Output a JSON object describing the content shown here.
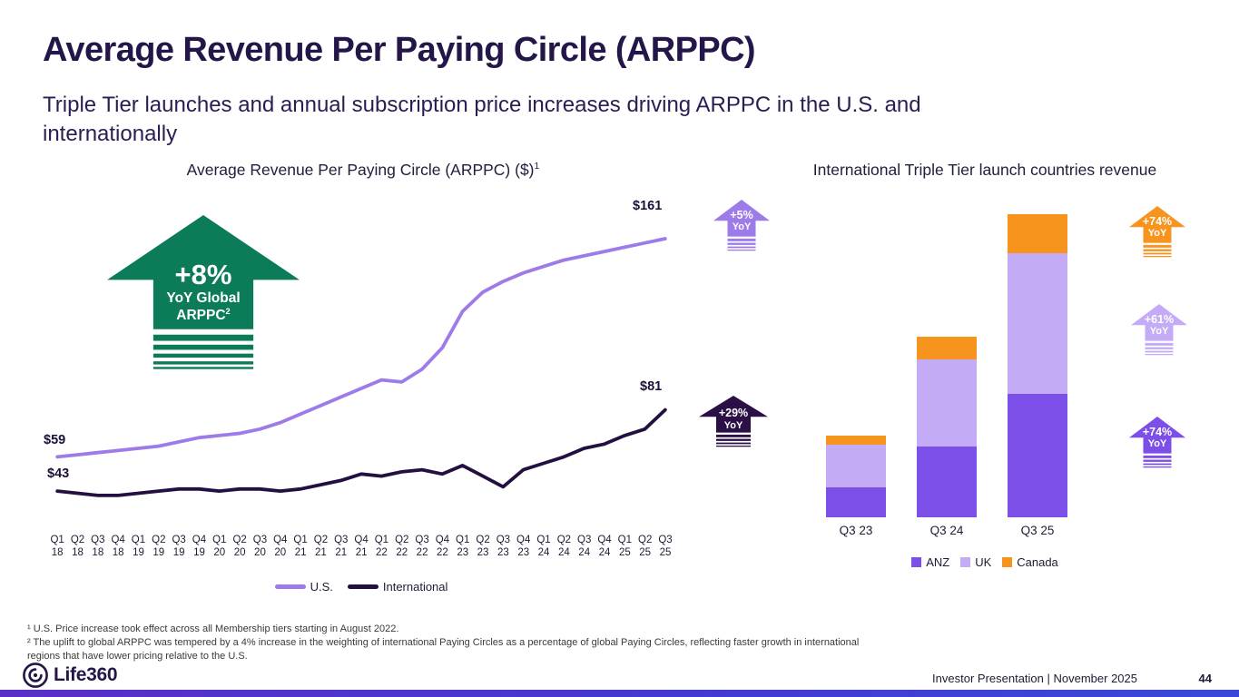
{
  "slide": {
    "title": "Average Revenue Per Paying Circle (ARPPC)",
    "subtitle_lines": [
      "Triple Tier launches and annual subscription price increases driving ARPPC in the U.S. and",
      "internationally"
    ],
    "logo_text": "Life360",
    "footer_text": "Investor Presentation | November 2025",
    "page_number": "44"
  },
  "footnotes": [
    "¹ U.S. Price increase took effect across all Membership tiers starting in August 2022.",
    "² The uplift to global ARPPC was tempered by a 4% increase in the weighting of international Paying Circles as a percentage of global Paying Circles, reflecting faster growth in international regions that have lower pricing relative to the U.S."
  ],
  "colors": {
    "title_text": "#251649",
    "us_line": "#9d7be8",
    "international_line": "#241040",
    "anz": "#7c4fe9",
    "uk": "#c3abf5",
    "canada": "#f7941d",
    "green_arrow": "#0c7b59",
    "dark_arrow": "#2b1045",
    "accent_bar": "#4438d2"
  },
  "icons": {
    "logo_icon": "life360-spiral-circle",
    "annotation_icon": "up-arrow-with-stripes"
  },
  "chart_data": [
    {
      "type": "line",
      "title": "Average Revenue Per Paying Circle (ARPPC) ($)",
      "title_sup": "1",
      "legend_position": "bottom",
      "grid": false,
      "ylim": [
        35,
        175
      ],
      "categories": [
        "Q1 18",
        "Q2 18",
        "Q3 18",
        "Q4 18",
        "Q1 19",
        "Q2 19",
        "Q3 19",
        "Q4 19",
        "Q1 20",
        "Q2 20",
        "Q3 20",
        "Q4 20",
        "Q1 21",
        "Q2 21",
        "Q3 21",
        "Q4 21",
        "Q1 22",
        "Q2 22",
        "Q3 22",
        "Q4 22",
        "Q1 23",
        "Q2 23",
        "Q3 23",
        "Q4 23",
        "Q1 24",
        "Q2 24",
        "Q3 24",
        "Q4 24",
        "Q1 25",
        "Q2 25",
        "Q3 25"
      ],
      "series": [
        {
          "name": "U.S.",
          "color": "#9d7be8",
          "start_label": "$59",
          "end_label": "$161",
          "values": [
            59,
            60,
            61,
            62,
            63,
            64,
            66,
            68,
            69,
            70,
            72,
            75,
            79,
            83,
            87,
            91,
            95,
            94,
            100,
            110,
            127,
            136,
            141,
            145,
            148,
            151,
            153,
            155,
            157,
            159,
            161
          ]
        },
        {
          "name": "International",
          "color": "#241040",
          "start_label": "$43",
          "end_label": "$81",
          "values": [
            43,
            42,
            41,
            41,
            42,
            43,
            44,
            44,
            43,
            44,
            44,
            43,
            44,
            46,
            48,
            51,
            50,
            52,
            53,
            51,
            55,
            50,
            45,
            53,
            56,
            59,
            63,
            65,
            69,
            72,
            81
          ]
        }
      ],
      "annotations": {
        "big_arrow": {
          "pct": "+8%",
          "line2": "YoY Global",
          "line3": "ARPPC",
          "sup": "2",
          "color": "#0c7b59"
        },
        "series_arrows": [
          {
            "label": "+5%",
            "sub": "YoY",
            "color": "#9d7be8"
          },
          {
            "label": "+29%",
            "sub": "YoY",
            "color": "#2b1045"
          }
        ]
      }
    },
    {
      "type": "stacked_bar",
      "title": "International Triple Tier launch countries revenue",
      "legend_position": "bottom",
      "grid": false,
      "values_note": "y-axis unlabeled; values are relative units estimated from bar heights",
      "categories": [
        "Q3 23",
        "Q3 24",
        "Q3 25"
      ],
      "series": [
        {
          "name": "ANZ",
          "color": "#7c4fe9",
          "values": [
            1.0,
            2.35,
            4.1
          ]
        },
        {
          "name": "UK",
          "color": "#c3abf5",
          "values": [
            1.4,
            2.9,
            4.67
          ]
        },
        {
          "name": "Canada",
          "color": "#f7941d",
          "values": [
            0.33,
            0.75,
            1.3
          ]
        }
      ],
      "annotations": {
        "arrows": [
          {
            "label": "+74%",
            "sub": "YoY",
            "color": "#f7941d"
          },
          {
            "label": "+61%",
            "sub": "YoY",
            "color": "#c3abf5"
          },
          {
            "label": "+74%",
            "sub": "YoY",
            "color": "#7c4fe9"
          }
        ]
      }
    }
  ]
}
